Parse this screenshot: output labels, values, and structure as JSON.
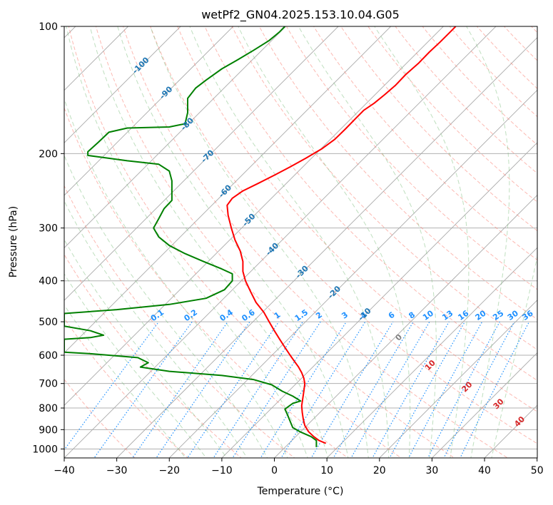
{
  "chart_data": {
    "type": "line",
    "title": "wetPf2_GN04.2025.153.10.04.G05",
    "xlabel": "Temperature (°C)",
    "ylabel": "Pressure (hPa)",
    "xlim": [
      -40,
      50
    ],
    "ylim": [
      1050,
      100
    ],
    "y_scale": "log",
    "grid": true,
    "x_ticks": [
      -40,
      -30,
      -20,
      -10,
      0,
      10,
      20,
      30,
      40,
      50
    ],
    "x_tick_labels": [
      "−40",
      "−30",
      "−20",
      "−10",
      "0",
      "10",
      "20",
      "30",
      "40",
      "50"
    ],
    "y_ticks": [
      1000,
      900,
      800,
      700,
      600,
      500,
      400,
      300,
      200,
      100
    ],
    "y_tick_labels": [
      "1000",
      "900",
      "800",
      "700",
      "600",
      "500",
      "400",
      "300",
      "200",
      "100"
    ],
    "colors": {
      "temperature": "#ff0000",
      "dewpoint": "#008000",
      "isotherms": "#aaaaaa",
      "dry_adiabats": "#fa8072",
      "moist_adiabats": "#7fbf7f",
      "mixing_ratio": "#1e90ff",
      "isotherm_labels": "#1f77b4",
      "dry_adiabat_labels": "#d62728",
      "wet_bulb_labels": "#808080",
      "cutoff_curve": "#d2b48c"
    },
    "series": [
      {
        "key": "temperature",
        "style": "solid",
        "points": [
          [
            9.8,
            970
          ],
          [
            8.5,
            955
          ],
          [
            7.5,
            935
          ],
          [
            6.5,
            910
          ],
          [
            5.8,
            880
          ],
          [
            5.5,
            850
          ],
          [
            5.3,
            820
          ],
          [
            5.2,
            790
          ],
          [
            5.4,
            760
          ],
          [
            5.6,
            730
          ],
          [
            5.8,
            700
          ],
          [
            5.6,
            680
          ],
          [
            5.2,
            660
          ],
          [
            4.6,
            640
          ],
          [
            3.8,
            620
          ],
          [
            3.0,
            600
          ],
          [
            2.0,
            575
          ],
          [
            1.0,
            550
          ],
          [
            0.0,
            525
          ],
          [
            -1.0,
            500
          ],
          [
            -2.0,
            475
          ],
          [
            -3.5,
            450
          ],
          [
            -4.5,
            425
          ],
          [
            -5.5,
            400
          ],
          [
            -6.0,
            380
          ],
          [
            -6.0,
            360
          ],
          [
            -6.5,
            340
          ],
          [
            -7.5,
            320
          ],
          [
            -8.2,
            300
          ],
          [
            -8.8,
            280
          ],
          [
            -9.0,
            265
          ],
          [
            -8.0,
            255
          ],
          [
            -6.0,
            245
          ],
          [
            -3.0,
            235
          ],
          [
            0.0,
            225
          ],
          [
            3.0,
            215
          ],
          [
            6.0,
            205
          ],
          [
            9.0,
            195
          ],
          [
            11.5,
            185
          ],
          [
            13.5,
            175
          ],
          [
            15.5,
            165
          ],
          [
            17.0,
            158
          ],
          [
            19.0,
            152
          ],
          [
            21.0,
            145
          ],
          [
            23.0,
            138
          ],
          [
            25.0,
            130
          ],
          [
            27.5,
            122
          ],
          [
            29.5,
            115
          ],
          [
            31.5,
            109
          ],
          [
            33.5,
            103
          ],
          [
            34.5,
            100
          ]
        ]
      },
      {
        "key": "dewpoint",
        "style": "solid",
        "points": [
          [
            8.0,
            990
          ],
          [
            8.0,
            955
          ],
          [
            7.0,
            935
          ],
          [
            5.0,
            912
          ],
          [
            3.5,
            890
          ],
          [
            3.0,
            860
          ],
          [
            2.5,
            830
          ],
          [
            2.0,
            805
          ],
          [
            3.5,
            780
          ],
          [
            5.0,
            770
          ],
          [
            3.5,
            750
          ],
          [
            1.5,
            730
          ],
          [
            -0.5,
            705
          ],
          [
            -4.0,
            685
          ],
          [
            -10.0,
            670
          ],
          [
            -20.0,
            655
          ],
          [
            -25.5,
            640
          ],
          [
            -24.0,
            625
          ],
          [
            -26.0,
            608
          ],
          [
            -35.0,
            595
          ],
          [
            -40.0,
            590
          ],
          [
            -40.0,
            550
          ],
          [
            -35.0,
            545
          ],
          [
            -32.5,
            538
          ],
          [
            -35.0,
            525
          ],
          [
            -40.0,
            512
          ],
          [
            -40.0,
            478
          ],
          [
            -30.0,
            468
          ],
          [
            -20.0,
            455
          ],
          [
            -13.0,
            440
          ],
          [
            -9.5,
            420
          ],
          [
            -8.0,
            400
          ],
          [
            -8.0,
            385
          ],
          [
            -10.0,
            375
          ],
          [
            -13.5,
            360
          ],
          [
            -17.0,
            345
          ],
          [
            -20.0,
            330
          ],
          [
            -22.0,
            315
          ],
          [
            -23.0,
            300
          ],
          [
            -22.0,
            285
          ],
          [
            -21.0,
            270
          ],
          [
            -19.5,
            258
          ],
          [
            -19.5,
            245
          ],
          [
            -19.5,
            232
          ],
          [
            -20.0,
            220
          ],
          [
            -22.0,
            212
          ],
          [
            -28.0,
            208
          ],
          [
            -33.0,
            204
          ],
          [
            -35.5,
            202
          ],
          [
            -35.5,
            198
          ],
          [
            -33.5,
            188
          ],
          [
            -31.5,
            178
          ],
          [
            -28.0,
            174
          ],
          [
            -20.0,
            173
          ],
          [
            -17.0,
            170
          ],
          [
            -16.5,
            160
          ],
          [
            -16.5,
            148
          ],
          [
            -15.0,
            140
          ],
          [
            -13.0,
            134
          ],
          [
            -10.0,
            126
          ],
          [
            -7.0,
            120
          ],
          [
            -4.0,
            114
          ],
          [
            -1.0,
            108
          ],
          [
            1.0,
            103
          ],
          [
            2.0,
            100
          ]
        ]
      }
    ],
    "isotherm_labels": [
      "-100",
      "-90",
      "-80",
      "-70",
      "-60",
      "-50",
      "-40",
      "-30",
      "-20",
      "-10"
    ],
    "mixing_ratio_labels": [
      "0.1",
      "0.2",
      "0.4",
      "0.6",
      "1",
      "1.5",
      "2",
      "3",
      "4",
      "6",
      "8",
      "10",
      "13",
      "16",
      "20",
      "25",
      "30",
      "36"
    ],
    "dry_adiabat_labels": [
      "10",
      "20",
      "30",
      "40"
    ],
    "wet_bulb_label": "0"
  }
}
